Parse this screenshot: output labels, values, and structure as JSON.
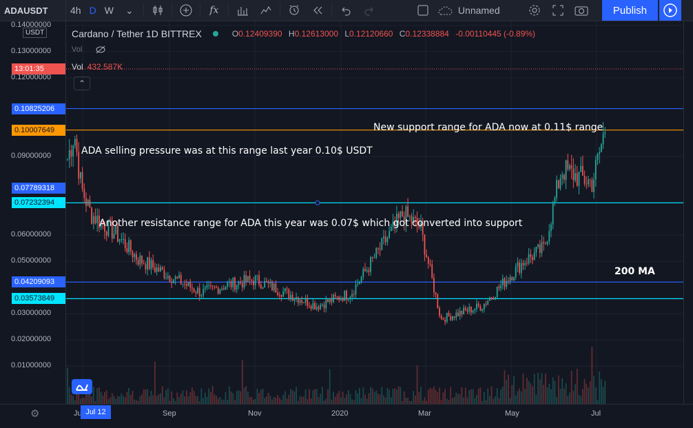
{
  "toolbar": {
    "symbol": "ADAUSDT",
    "intervals": [
      "4h",
      "D",
      "W"
    ],
    "active_interval": "D",
    "layout_name": "Unnamed",
    "publish_label": "Publish",
    "accent": "#2962ff"
  },
  "legend": {
    "title": "Cardano / Tether  1D  BITTREX",
    "o_label": "O",
    "o": "0.12409390",
    "h_label": "H",
    "h": "0.12613000",
    "l_label": "L",
    "l": "0.12120660",
    "c_label": "C",
    "c": "0.12338884",
    "change": "-0.00110445 (-0.89%)",
    "vol_label": "Vol",
    "vol_label_2": "Vol",
    "volume": "432.587K",
    "collapse_icon": "chevron-up-icon"
  },
  "axis": {
    "currency": "USDT",
    "y_ticks": [
      {
        "v": 0.14,
        "t": "0.14000000"
      },
      {
        "v": 0.13,
        "t": "0.13000000"
      },
      {
        "v": 0.12,
        "t": "0.12000000"
      },
      {
        "v": 0.09,
        "t": "0.09000000"
      },
      {
        "v": 0.06,
        "t": "0.06000000"
      },
      {
        "v": 0.05,
        "t": "0.05000000"
      },
      {
        "v": 0.03,
        "t": "0.03000000"
      },
      {
        "v": 0.02,
        "t": "0.02000000"
      },
      {
        "v": 0.01,
        "t": "0.01000000"
      }
    ],
    "x_ticks": [
      "Ju",
      "Sep",
      "Nov",
      "2020",
      "Mar",
      "May",
      "Jul"
    ],
    "date_badge": "Jul 12"
  },
  "price_tags": [
    {
      "label": "13:01:35",
      "price": 0.1234,
      "color": "#ef5350",
      "text": "#ffffff"
    },
    {
      "label": "0.10825206",
      "price": 0.10825,
      "color": "#2962ff",
      "text": "#ffffff"
    },
    {
      "label": "0.10007649",
      "price": 0.10008,
      "color": "#ff9800",
      "text": "#131722"
    },
    {
      "label": "0.07789318",
      "price": 0.07789,
      "color": "#2962ff",
      "text": "#ffffff"
    },
    {
      "label": "0.07232394",
      "price": 0.07232,
      "color": "#00e5ff",
      "text": "#131722"
    },
    {
      "label": "0.04209093",
      "price": 0.04209,
      "color": "#2962ff",
      "text": "#ffffff"
    },
    {
      "label": "0.03573849",
      "price": 0.03574,
      "color": "#00e5ff",
      "text": "#131722"
    }
  ],
  "annotations": {
    "new_support": "New support range for ADA now at 0.11$ range",
    "selling_pressure": "ADA selling pressure was at this range last year 0.10$  USDT",
    "resistance": "Another resistance range for ADA this year was 0.07$  which got converted into support",
    "ma": "200 MA"
  },
  "chart_data": {
    "type": "candlestick",
    "title": "Cardano / Tether  1D  BITTREX",
    "ylabel": "USDT",
    "ylim": [
      0.0,
      0.145
    ],
    "close_path": [
      {
        "x": "Jun 2019",
        "y": 0.088
      },
      {
        "x": "early Jul 2019",
        "y": 0.099
      },
      {
        "x": "mid Jul 2019",
        "y": 0.078
      },
      {
        "x": "late Jul 2019",
        "y": 0.068
      },
      {
        "x": "Aug 2019",
        "y": 0.06
      },
      {
        "x": "late Aug 2019",
        "y": 0.051
      },
      {
        "x": "Sep 2019",
        "y": 0.046
      },
      {
        "x": "late Sep 2019",
        "y": 0.038
      },
      {
        "x": "Oct 2019",
        "y": 0.041
      },
      {
        "x": "Nov 2019",
        "y": 0.043
      },
      {
        "x": "Dec 2019",
        "y": 0.033
      },
      {
        "x": "Jan 2020",
        "y": 0.038
      },
      {
        "x": "Feb 2020",
        "y": 0.068
      },
      {
        "x": "late Feb 2020",
        "y": 0.063
      },
      {
        "x": "Mar 2020",
        "y": 0.028
      },
      {
        "x": "Apr 2020",
        "y": 0.033
      },
      {
        "x": "May 2020",
        "y": 0.05
      },
      {
        "x": "late May 2020",
        "y": 0.055
      },
      {
        "x": "Jun 2020",
        "y": 0.085
      },
      {
        "x": "late Jun 2020",
        "y": 0.08
      },
      {
        "x": "early Jul 2020",
        "y": 0.1
      },
      {
        "x": "Jul 2020",
        "y": 0.123
      }
    ],
    "horizontal_lines": [
      {
        "price": 0.10825206,
        "color": "#2962ff"
      },
      {
        "price": 0.10007649,
        "color": "#ff9800"
      },
      {
        "price": 0.07232394,
        "color": "#00e5ff"
      },
      {
        "price": 0.04209093,
        "color": "#2962ff"
      },
      {
        "price": 0.03573849,
        "color": "#00e5ff"
      }
    ],
    "colors": {
      "up": "#26a69a",
      "down": "#ef5350",
      "background": "#131722"
    }
  }
}
